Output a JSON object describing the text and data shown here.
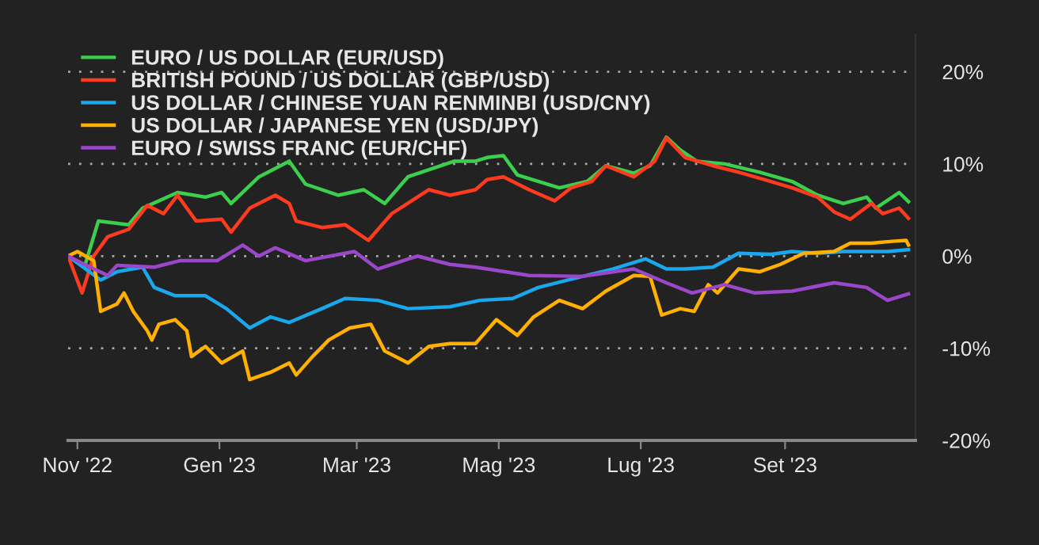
{
  "chart_data": {
    "type": "line",
    "xlim": [
      "2022-10-28",
      "2023-10-27"
    ],
    "xticks": [
      {
        "value": "2022-11-01",
        "label": "Nov '22"
      },
      {
        "value": "2023-01-01",
        "label": "Gen '23"
      },
      {
        "value": "2023-03-01",
        "label": "Mar '23"
      },
      {
        "value": "2023-05-01",
        "label": "Mag '23"
      },
      {
        "value": "2023-07-01",
        "label": "Lug '23"
      },
      {
        "value": "2023-09-01",
        "label": "Set '23"
      }
    ],
    "ylim": [
      -20,
      24
    ],
    "yticks": [
      {
        "value": -20,
        "label": "-20%"
      },
      {
        "value": -10,
        "label": "-10%"
      },
      {
        "value": 0,
        "label": "0%"
      },
      {
        "value": 10,
        "label": "10%"
      },
      {
        "value": 20,
        "label": "20%"
      }
    ],
    "grid": "y",
    "legend": "top left",
    "marker": "none",
    "line_style": "solid",
    "series": [
      {
        "name": "EURO / US DOLLAR (EUR/USD)",
        "color": "#3ccf4e",
        "x": [
          "2022-10-28",
          "2022-11-04",
          "2022-11-10",
          "2022-11-23",
          "2022-11-29",
          "2022-12-14",
          "2022-12-26",
          "2023-01-02",
          "2023-01-06",
          "2023-01-18",
          "2023-01-31",
          "2023-02-07",
          "2023-02-21",
          "2023-03-04",
          "2023-03-13",
          "2023-03-23",
          "2023-04-12",
          "2023-04-21",
          "2023-04-26",
          "2023-05-03",
          "2023-05-09",
          "2023-05-27",
          "2023-06-08",
          "2023-06-16",
          "2023-06-28",
          "2023-07-05",
          "2023-07-12",
          "2023-07-18",
          "2023-07-25",
          "2023-08-06",
          "2023-08-21",
          "2023-09-04",
          "2023-09-15",
          "2023-09-26",
          "2023-10-06",
          "2023-10-10",
          "2023-10-20",
          "2023-10-24"
        ],
        "values": [
          0,
          -1.2,
          3.8,
          3.4,
          5.2,
          6.9,
          6.4,
          6.9,
          5.7,
          8.6,
          10.3,
          7.8,
          6.6,
          7.2,
          5.7,
          8.6,
          10.3,
          10.3,
          10.7,
          10.9,
          8.8,
          7.4,
          8.1,
          9.8,
          9.0,
          9.8,
          12.9,
          11.5,
          10.3,
          10.0,
          9.1,
          8.1,
          6.6,
          5.7,
          6.4,
          5.2,
          6.9,
          5.9
        ]
      },
      {
        "name": "BRITISH POUND / US DOLLAR (GBP/USD)",
        "color": "#ff3b1f",
        "x": [
          "2022-10-28",
          "2022-11-03",
          "2022-11-08",
          "2022-11-14",
          "2022-11-23",
          "2022-12-01",
          "2022-12-08",
          "2022-12-14",
          "2022-12-22",
          "2023-01-02",
          "2023-01-06",
          "2023-01-14",
          "2023-01-25",
          "2023-01-31",
          "2023-02-03",
          "2023-02-14",
          "2023-02-24",
          "2023-03-06",
          "2023-03-16",
          "2023-04-01",
          "2023-04-10",
          "2023-04-21",
          "2023-04-26",
          "2023-05-03",
          "2023-05-14",
          "2023-05-25",
          "2023-06-01",
          "2023-06-10",
          "2023-06-16",
          "2023-06-28",
          "2023-07-07",
          "2023-07-12",
          "2023-07-20",
          "2023-08-01",
          "2023-08-12",
          "2023-08-23",
          "2023-09-04",
          "2023-09-15",
          "2023-09-22",
          "2023-09-29",
          "2023-10-08",
          "2023-10-13",
          "2023-10-20",
          "2023-10-24"
        ],
        "values": [
          0,
          -4.0,
          0,
          2.1,
          2.9,
          5.5,
          4.6,
          6.6,
          3.8,
          4.0,
          2.6,
          5.2,
          6.6,
          5.7,
          3.8,
          3.1,
          3.4,
          1.7,
          4.6,
          7.2,
          6.6,
          7.2,
          8.3,
          8.6,
          7.2,
          6.0,
          7.4,
          8.1,
          9.8,
          8.6,
          10.3,
          12.8,
          10.7,
          9.8,
          9.1,
          8.3,
          7.4,
          6.4,
          4.8,
          4.0,
          5.7,
          4.6,
          5.2,
          4.1
        ]
      },
      {
        "name": "US DOLLAR / CHINESE YUAN RENMINBI (USD/CNY)",
        "color": "#1aa7ec",
        "x": [
          "2022-10-28",
          "2022-11-11",
          "2022-11-18",
          "2022-11-29",
          "2022-12-04",
          "2022-12-13",
          "2022-12-26",
          "2023-01-04",
          "2023-01-14",
          "2023-01-23",
          "2023-01-31",
          "2023-02-14",
          "2023-02-24",
          "2023-03-10",
          "2023-03-23",
          "2023-04-10",
          "2023-04-23",
          "2023-05-07",
          "2023-05-18",
          "2023-06-06",
          "2023-06-19",
          "2023-07-03",
          "2023-07-12",
          "2023-07-20",
          "2023-08-01",
          "2023-08-12",
          "2023-08-26",
          "2023-09-04",
          "2023-09-15",
          "2023-09-26",
          "2023-10-15",
          "2023-10-24"
        ],
        "values": [
          0,
          -2.6,
          -1.7,
          -1.2,
          -3.4,
          -4.3,
          -4.3,
          -5.7,
          -7.8,
          -6.6,
          -7.2,
          -5.7,
          -4.6,
          -4.8,
          -5.7,
          -5.5,
          -4.8,
          -4.6,
          -3.4,
          -2.2,
          -1.4,
          -0.3,
          -1.4,
          -1.4,
          -1.2,
          0.3,
          0.2,
          0.5,
          0.3,
          0.5,
          0.5,
          0.7
        ]
      },
      {
        "name": "US DOLLAR / JAPANESE YEN (USD/JPY)",
        "color": "#ffb000",
        "x": [
          "2022-10-28",
          "2022-11-01",
          "2022-11-08",
          "2022-11-11",
          "2022-11-18",
          "2022-11-21",
          "2022-11-25",
          "2022-12-01",
          "2022-12-03",
          "2022-12-06",
          "2022-12-13",
          "2022-12-18",
          "2022-12-20",
          "2022-12-26",
          "2023-01-02",
          "2023-01-11",
          "2023-01-14",
          "2023-01-23",
          "2023-01-31",
          "2023-02-03",
          "2023-02-10",
          "2023-02-17",
          "2023-02-26",
          "2023-03-07",
          "2023-03-13",
          "2023-03-23",
          "2023-04-01",
          "2023-04-10",
          "2023-04-21",
          "2023-04-30",
          "2023-05-09",
          "2023-05-16",
          "2023-05-27",
          "2023-06-06",
          "2023-06-16",
          "2023-06-28",
          "2023-07-05",
          "2023-07-10",
          "2023-07-18",
          "2023-07-24",
          "2023-07-30",
          "2023-08-03",
          "2023-08-12",
          "2023-08-21",
          "2023-08-30",
          "2023-09-09",
          "2023-09-22",
          "2023-09-29",
          "2023-10-08",
          "2023-10-17",
          "2023-10-23",
          "2023-10-24"
        ],
        "values": [
          0,
          0.5,
          -0.5,
          -6.0,
          -5.2,
          -4.0,
          -6.0,
          -8.1,
          -9.1,
          -7.4,
          -6.9,
          -8.1,
          -10.9,
          -9.8,
          -11.6,
          -10.3,
          -13.4,
          -12.6,
          -11.6,
          -12.9,
          -10.9,
          -9.1,
          -7.8,
          -7.4,
          -10.3,
          -11.6,
          -9.8,
          -9.5,
          -9.5,
          -6.9,
          -8.6,
          -6.6,
          -4.8,
          -5.7,
          -3.8,
          -2.1,
          -2.2,
          -6.4,
          -5.7,
          -6.0,
          -3.1,
          -4.0,
          -1.4,
          -1.7,
          -0.9,
          0.3,
          0.5,
          1.4,
          1.4,
          1.6,
          1.7,
          1.2
        ]
      },
      {
        "name": "EURO / SWISS FRANC (EUR/CHF)",
        "color": "#9a47c9",
        "x": [
          "2022-10-28",
          "2022-11-04",
          "2022-11-14",
          "2022-11-18",
          "2022-12-04",
          "2022-12-15",
          "2022-12-31",
          "2023-01-11",
          "2023-01-18",
          "2023-01-25",
          "2023-02-07",
          "2023-02-28",
          "2023-03-10",
          "2023-03-27",
          "2023-04-10",
          "2023-04-21",
          "2023-05-14",
          "2023-06-06",
          "2023-06-28",
          "2023-07-12",
          "2023-07-23",
          "2023-08-06",
          "2023-08-19",
          "2023-09-04",
          "2023-09-22",
          "2023-10-06",
          "2023-10-15",
          "2023-10-24"
        ],
        "values": [
          0,
          -0.9,
          -2.1,
          -1.0,
          -1.2,
          -0.5,
          -0.5,
          1.2,
          0,
          0.9,
          -0.5,
          0.5,
          -1.4,
          0,
          -0.9,
          -1.2,
          -2.1,
          -2.2,
          -1.4,
          -2.9,
          -4.0,
          -3.1,
          -4.0,
          -3.8,
          -2.9,
          -3.4,
          -4.8,
          -4.1
        ]
      }
    ]
  }
}
